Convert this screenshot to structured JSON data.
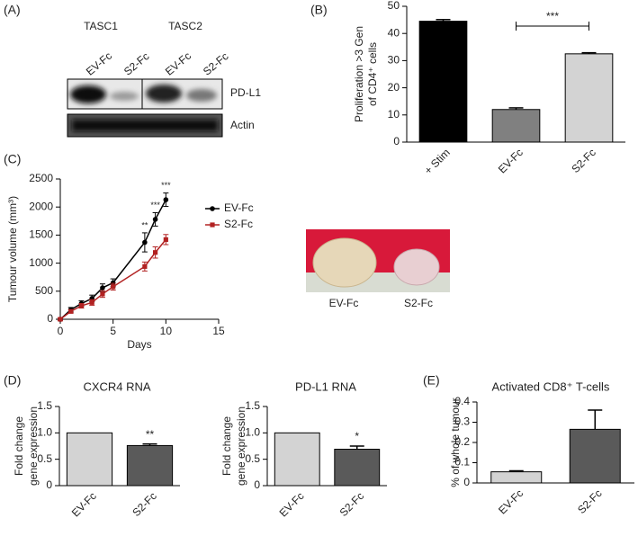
{
  "panel_labels": [
    "(A)",
    "(B)",
    "(C)",
    "(D)",
    "(E)"
  ],
  "blot": {
    "groups": [
      "TASC1",
      "TASC2"
    ],
    "lanes": [
      "EV-Fc",
      "S2-Fc",
      "EV-Fc",
      "S2-Fc"
    ],
    "bands": [
      "PD-L1",
      "Actin"
    ]
  },
  "photo": {
    "labels": [
      "EV-Fc",
      "S2-Fc"
    ]
  },
  "chart_data": [
    {
      "type": "bar",
      "ylabel": [
        "Proliferation >3 Gen",
        "of CD4⁺ cells"
      ],
      "categories": [
        "+ Stim",
        "EV-Fc",
        "S2-Fc"
      ],
      "values": [
        44.5,
        12,
        32.5
      ],
      "errors": [
        0.6,
        0.6,
        0.4
      ],
      "colors": [
        "#000000",
        "#808080",
        "#d3d3d3"
      ],
      "ylim": [
        0,
        50
      ],
      "yticks": [
        0,
        10,
        20,
        30,
        40,
        50
      ],
      "bracket_label": "***"
    },
    {
      "type": "line",
      "xlabel": "Days",
      "ylabel": [
        "Tumour volume (mm³)"
      ],
      "x": [
        0,
        1,
        2,
        3,
        4,
        5,
        8,
        9,
        10
      ],
      "series": [
        {
          "name": "EV-Fc",
          "color": "#000000",
          "values": [
            0,
            170,
            280,
            370,
            560,
            650,
            1370,
            1780,
            2130
          ],
          "errors": [
            20,
            40,
            50,
            60,
            70,
            70,
            170,
            120,
            120
          ],
          "point_labels": [
            null,
            null,
            null,
            null,
            null,
            null,
            "**",
            "***",
            "***"
          ]
        },
        {
          "name": "S2-Fc",
          "color": "#b22222",
          "values": [
            0,
            140,
            240,
            300,
            450,
            580,
            940,
            1190,
            1420
          ],
          "errors": [
            20,
            30,
            40,
            50,
            60,
            60,
            80,
            100,
            90
          ]
        }
      ],
      "xlim": [
        0,
        15
      ],
      "xticks": [
        0,
        5,
        10,
        15
      ],
      "ylim": [
        0,
        2500
      ],
      "yticks": [
        0,
        500,
        1000,
        1500,
        2000,
        2500
      ]
    },
    {
      "type": "bar",
      "title": "CXCR4 RNA",
      "ylabel": [
        "Fold change",
        "gene expression"
      ],
      "categories": [
        "EV-Fc",
        "S2-Fc"
      ],
      "values": [
        1.0,
        0.76
      ],
      "errors": [
        null,
        0.03
      ],
      "annotations": [
        null,
        "**"
      ],
      "colors": [
        "#d3d3d3",
        "#5a5a5a"
      ],
      "ylim": [
        0,
        1.5
      ],
      "yticks": [
        0,
        0.5,
        {
          "value": 1,
          "label": "1.0"
        },
        1.5
      ]
    },
    {
      "type": "bar",
      "title": "PD-L1 RNA",
      "ylabel": [
        "Fold change",
        "gene expression"
      ],
      "categories": [
        "EV-Fc",
        "S2-Fc"
      ],
      "values": [
        1.0,
        0.69
      ],
      "errors": [
        null,
        0.06
      ],
      "annotations": [
        null,
        "*"
      ],
      "colors": [
        "#d3d3d3",
        "#5a5a5a"
      ],
      "ylim": [
        0,
        1.5
      ],
      "yticks": [
        0,
        0.5,
        {
          "value": 1,
          "label": "1.0"
        },
        1.5
      ]
    },
    {
      "type": "bar",
      "title": "Activated CD8⁺ T-cells",
      "ylabel": [
        "% of whole tumour"
      ],
      "categories": [
        "EV-Fc",
        "S2-Fc"
      ],
      "values": [
        0.055,
        0.265
      ],
      "errors": [
        0.005,
        0.095
      ],
      "colors": [
        "#d3d3d3",
        "#5a5a5a"
      ],
      "ylim": [
        0,
        0.4
      ],
      "yticks": [
        0,
        0.1,
        0.2,
        0.3,
        0.4
      ]
    }
  ]
}
